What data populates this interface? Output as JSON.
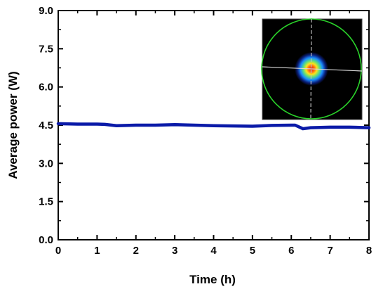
{
  "chart_data": {
    "type": "line",
    "title": "",
    "xlabel": "Time (h)",
    "ylabel": "Average power (W)",
    "xlim": [
      0,
      8
    ],
    "ylim": [
      0,
      9
    ],
    "xticks": [
      "0",
      "1",
      "2",
      "3",
      "4",
      "5",
      "6",
      "7",
      "8"
    ],
    "yticks": [
      "0.0",
      "1.5",
      "3.0",
      "4.5",
      "6.0",
      "7.5",
      "9.0"
    ],
    "grid": false,
    "legend": "none",
    "inset": "beam profile image (top-right)",
    "series": [
      {
        "color": "#0a1aa8",
        "x": [
          0,
          0.5,
          1,
          1.2,
          1.5,
          2,
          2.5,
          3,
          3.5,
          4,
          4.5,
          5,
          5.5,
          6,
          6.1,
          6.3,
          6.5,
          7,
          7.5,
          8
        ],
        "y": [
          4.56,
          4.54,
          4.54,
          4.53,
          4.48,
          4.5,
          4.5,
          4.52,
          4.5,
          4.48,
          4.47,
          4.46,
          4.49,
          4.5,
          4.5,
          4.36,
          4.4,
          4.42,
          4.42,
          4.4
        ]
      }
    ]
  }
}
